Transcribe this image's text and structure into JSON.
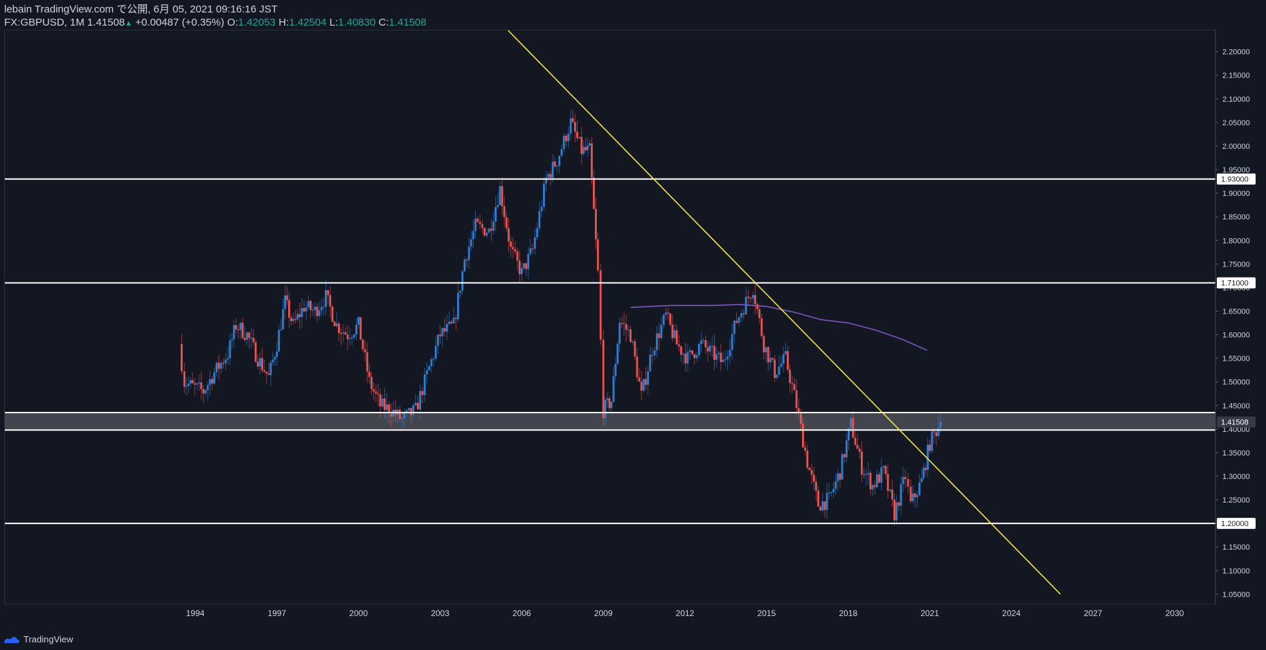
{
  "header": {
    "line1": "lebain TradingView.com で公開, 6月 05, 2021 09:16:16 JST",
    "symbol": "FX:GBPUSD, 1M",
    "last": "1.41508",
    "change": "+0.00487 (+0.35%)",
    "o_label": "O:",
    "o_val": "1.42053",
    "h_label": "H:",
    "h_val": "1.42504",
    "l_label": "L:",
    "l_val": "1.40830",
    "c_label": "C:",
    "c_val": "1.41508"
  },
  "footer": {
    "brand": "TradingView"
  },
  "colors": {
    "up": "#2f7fd6",
    "down": "#ef5350",
    "bg": "#131722",
    "trend": "#f5e642",
    "ma": "#7e57c2",
    "hline": "#ffffff"
  },
  "chart_data": {
    "type": "candlestick",
    "symbol": "FX:GBPUSD",
    "interval": "1M",
    "x_range": [
      1987.0,
      2031.5
    ],
    "ylim": [
      1.03,
      2.245
    ],
    "x_ticks": [
      "1994",
      "1997",
      "2000",
      "2003",
      "2006",
      "2009",
      "2012",
      "2015",
      "2018",
      "2021",
      "2024",
      "2027",
      "2030"
    ],
    "y_ticks": [
      "2.20000",
      "2.15000",
      "2.10000",
      "2.05000",
      "2.00000",
      "1.95000",
      "1.90000",
      "1.85000",
      "1.80000",
      "1.75000",
      "1.70000",
      "1.65000",
      "1.60000",
      "1.55000",
      "1.50000",
      "1.45000",
      "1.40000",
      "1.35000",
      "1.30000",
      "1.25000",
      "1.20000",
      "1.15000",
      "1.10000",
      "1.05000"
    ],
    "price_anchors": [
      [
        1993.4,
        1.58
      ],
      [
        1993.6,
        1.5
      ],
      [
        1993.9,
        1.49
      ],
      [
        1994.3,
        1.48
      ],
      [
        1994.7,
        1.52
      ],
      [
        1995.2,
        1.56
      ],
      [
        1995.5,
        1.62
      ],
      [
        1995.9,
        1.6
      ],
      [
        1996.3,
        1.55
      ],
      [
        1996.7,
        1.51
      ],
      [
        1997.0,
        1.58
      ],
      [
        1997.3,
        1.67
      ],
      [
        1997.6,
        1.62
      ],
      [
        1998.0,
        1.66
      ],
      [
        1998.4,
        1.65
      ],
      [
        1998.8,
        1.68
      ],
      [
        1999.2,
        1.62
      ],
      [
        1999.6,
        1.6
      ],
      [
        2000.0,
        1.62
      ],
      [
        2000.4,
        1.5
      ],
      [
        2000.8,
        1.45
      ],
      [
        2001.2,
        1.44
      ],
      [
        2001.6,
        1.42
      ],
      [
        2002.1,
        1.44
      ],
      [
        2002.6,
        1.53
      ],
      [
        2003.0,
        1.6
      ],
      [
        2003.5,
        1.62
      ],
      [
        2003.9,
        1.76
      ],
      [
        2004.3,
        1.83
      ],
      [
        2004.8,
        1.82
      ],
      [
        2005.2,
        1.91
      ],
      [
        2005.6,
        1.78
      ],
      [
        2006.0,
        1.73
      ],
      [
        2006.4,
        1.78
      ],
      [
        2006.9,
        1.93
      ],
      [
        2007.3,
        1.97
      ],
      [
        2007.8,
        2.05
      ],
      [
        2008.2,
        1.99
      ],
      [
        2008.5,
        1.99
      ],
      [
        2008.8,
        1.73
      ],
      [
        2009.0,
        1.44
      ],
      [
        2009.3,
        1.46
      ],
      [
        2009.6,
        1.63
      ],
      [
        2010.0,
        1.6
      ],
      [
        2010.4,
        1.47
      ],
      [
        2010.8,
        1.57
      ],
      [
        2011.3,
        1.64
      ],
      [
        2011.7,
        1.58
      ],
      [
        2012.1,
        1.55
      ],
      [
        2012.6,
        1.58
      ],
      [
        2013.0,
        1.56
      ],
      [
        2013.4,
        1.54
      ],
      [
        2013.9,
        1.63
      ],
      [
        2014.5,
        1.7
      ],
      [
        2014.9,
        1.58
      ],
      [
        2015.3,
        1.52
      ],
      [
        2015.7,
        1.55
      ],
      [
        2016.1,
        1.45
      ],
      [
        2016.5,
        1.33
      ],
      [
        2016.9,
        1.24
      ],
      [
        2017.3,
        1.25
      ],
      [
        2017.7,
        1.31
      ],
      [
        2018.1,
        1.41
      ],
      [
        2018.5,
        1.32
      ],
      [
        2018.9,
        1.28
      ],
      [
        2019.3,
        1.31
      ],
      [
        2019.7,
        1.22
      ],
      [
        2020.1,
        1.3
      ],
      [
        2020.3,
        1.24
      ],
      [
        2020.7,
        1.29
      ],
      [
        2021.0,
        1.37
      ],
      [
        2021.4,
        1.41508
      ]
    ],
    "horizontal_lines": [
      {
        "price": 1.93,
        "label": "1.93000"
      },
      {
        "price": 1.71,
        "label": "1.71000"
      },
      {
        "price": 1.435,
        "label": ""
      },
      {
        "price": 1.398,
        "label": ""
      },
      {
        "price": 1.2,
        "label": "1.20000"
      }
    ],
    "last_price_label": "1.41508",
    "zone": [
      1.398,
      1.435
    ],
    "trendline": [
      [
        2005.5,
        2.245
      ],
      [
        2025.8,
        1.05
      ]
    ],
    "moving_average": [
      [
        2010.0,
        1.658
      ],
      [
        2011.5,
        1.662
      ],
      [
        2013.0,
        1.662
      ],
      [
        2014.0,
        1.664
      ],
      [
        2015.0,
        1.66
      ],
      [
        2016.0,
        1.648
      ],
      [
        2017.0,
        1.632
      ],
      [
        2018.0,
        1.625
      ],
      [
        2019.0,
        1.61
      ],
      [
        2020.0,
        1.59
      ],
      [
        2020.9,
        1.567
      ]
    ],
    "grid": false,
    "legend": "none"
  }
}
